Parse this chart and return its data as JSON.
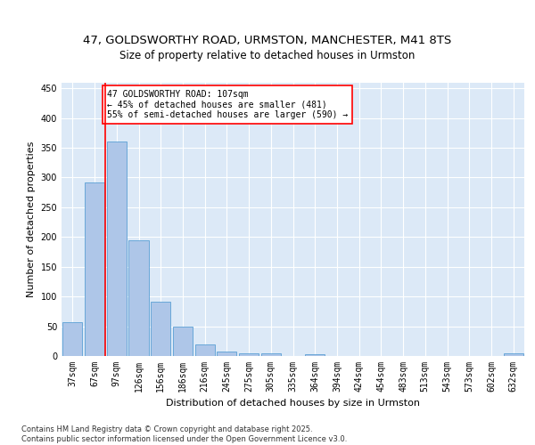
{
  "title_line1": "47, GOLDSWORTHY ROAD, URMSTON, MANCHESTER, M41 8TS",
  "title_line2": "Size of property relative to detached houses in Urmston",
  "xlabel": "Distribution of detached houses by size in Urmston",
  "ylabel": "Number of detached properties",
  "bar_labels": [
    "37sqm",
    "67sqm",
    "97sqm",
    "126sqm",
    "156sqm",
    "186sqm",
    "216sqm",
    "245sqm",
    "275sqm",
    "305sqm",
    "335sqm",
    "364sqm",
    "394sqm",
    "424sqm",
    "454sqm",
    "483sqm",
    "513sqm",
    "543sqm",
    "573sqm",
    "602sqm",
    "632sqm"
  ],
  "bar_values": [
    57,
    291,
    361,
    194,
    92,
    49,
    19,
    8,
    5,
    5,
    0,
    3,
    0,
    0,
    0,
    0,
    0,
    0,
    0,
    0,
    4
  ],
  "bar_color": "#aec6e8",
  "bar_edge_color": "#5a9fd4",
  "background_color": "#dce9f7",
  "grid_color": "#ffffff",
  "vline_color": "red",
  "annotation_text": "47 GOLDSWORTHY ROAD: 107sqm\n← 45% of detached houses are smaller (481)\n55% of semi-detached houses are larger (590) →",
  "annotation_box_color": "white",
  "annotation_box_edge": "red",
  "ylim": [
    0,
    460
  ],
  "yticks": [
    0,
    50,
    100,
    150,
    200,
    250,
    300,
    350,
    400,
    450
  ],
  "footer_text": "Contains HM Land Registry data © Crown copyright and database right 2025.\nContains public sector information licensed under the Open Government Licence v3.0.",
  "title_fontsize": 9.5,
  "subtitle_fontsize": 8.5,
  "axis_label_fontsize": 8,
  "tick_fontsize": 7,
  "annotation_fontsize": 7,
  "footer_fontsize": 6
}
